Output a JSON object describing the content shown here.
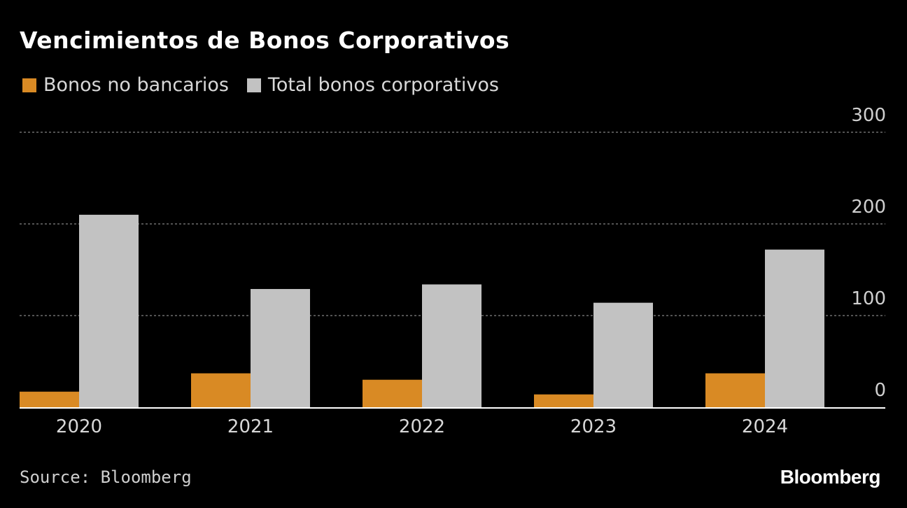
{
  "title": "Vencimientos de Bonos Corporativos",
  "legend": [
    {
      "label": "Bonos no bancarios",
      "color": "#d98a24"
    },
    {
      "label": "Total bonos corporativos",
      "color": "#c2c2c2"
    }
  ],
  "source": "Source: Bloomberg",
  "brand": "Bloomberg",
  "chart_data": {
    "type": "bar",
    "categories": [
      "2020",
      "2021",
      "2022",
      "2023",
      "2024"
    ],
    "series": [
      {
        "name": "Bonos no bancarios",
        "color": "#d98a24",
        "values": [
          17,
          37,
          30,
          14,
          37
        ]
      },
      {
        "name": "Total bonos corporativos",
        "color": "#c2c2c2",
        "values": [
          210,
          129,
          134,
          114,
          172
        ]
      }
    ],
    "yticks": [
      "0",
      "100",
      "200",
      "300"
    ],
    "ylim": [
      0,
      300
    ],
    "grid": true,
    "y_axis_side": "right",
    "legend_position": "top-left"
  }
}
